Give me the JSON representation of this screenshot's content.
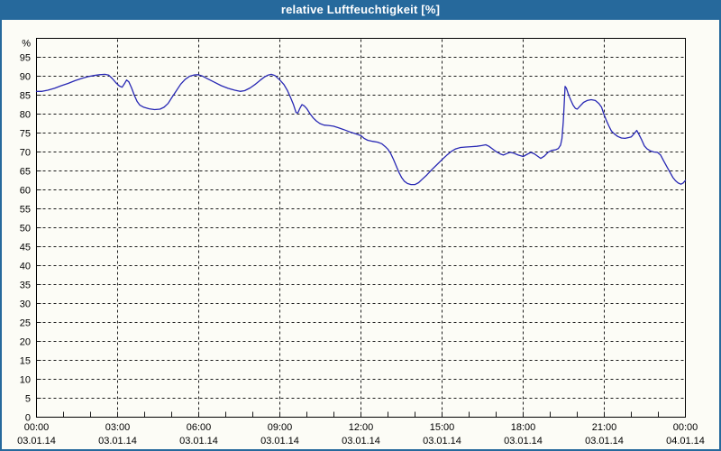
{
  "window": {
    "title": "relative Luftfeuchtigkeit [%]"
  },
  "colors": {
    "titlebar": "#26699C",
    "frame_border": "#26699C",
    "background": "#FCFCF6",
    "grid": "#1a1a1a",
    "axis": "#000000",
    "line": "#2828B4",
    "text": "#000000"
  },
  "chart_data": {
    "type": "line",
    "title": "relative Luftfeuchtigkeit [%]",
    "y_unit_label": "%",
    "grid": true,
    "legend_position": "none",
    "y_range": [
      0,
      100
    ],
    "y_ticks": [
      0,
      5,
      10,
      15,
      20,
      25,
      30,
      35,
      40,
      45,
      50,
      55,
      60,
      65,
      70,
      75,
      80,
      85,
      90,
      95
    ],
    "x_range_minutes": [
      0,
      1440
    ],
    "x_major_tick_interval_minutes": 180,
    "x_minor_tick_interval_minutes": 60,
    "x_ticks": [
      {
        "time": "00:00",
        "date": "03.01.14"
      },
      {
        "time": "03:00",
        "date": "03.01.14"
      },
      {
        "time": "06:00",
        "date": "03.01.14"
      },
      {
        "time": "09:00",
        "date": "03.01.14"
      },
      {
        "time": "12:00",
        "date": "03.01.14"
      },
      {
        "time": "15:00",
        "date": "03.01.14"
      },
      {
        "time": "18:00",
        "date": "03.01.14"
      },
      {
        "time": "21:00",
        "date": "03.01.14"
      },
      {
        "time": "00:00",
        "date": "04.01.14"
      }
    ],
    "series": [
      {
        "name": "relative Luftfeuchtigkeit",
        "unit": "%",
        "color": "#2828B4",
        "points": [
          [
            0,
            86.0
          ],
          [
            12,
            86.0
          ],
          [
            25,
            86.3
          ],
          [
            40,
            86.8
          ],
          [
            55,
            87.5
          ],
          [
            70,
            88.1
          ],
          [
            85,
            88.8
          ],
          [
            100,
            89.4
          ],
          [
            115,
            89.9
          ],
          [
            128,
            90.2
          ],
          [
            140,
            90.4
          ],
          [
            152,
            90.5
          ],
          [
            160,
            90.3
          ],
          [
            168,
            89.4
          ],
          [
            176,
            88.3
          ],
          [
            184,
            87.4
          ],
          [
            190,
            87.1
          ],
          [
            196,
            88.2
          ],
          [
            200,
            89.0
          ],
          [
            205,
            88.5
          ],
          [
            211,
            86.9
          ],
          [
            217,
            85.0
          ],
          [
            223,
            83.4
          ],
          [
            229,
            82.4
          ],
          [
            238,
            81.8
          ],
          [
            250,
            81.4
          ],
          [
            262,
            81.2
          ],
          [
            274,
            81.3
          ],
          [
            283,
            81.8
          ],
          [
            292,
            82.8
          ],
          [
            300,
            84.3
          ],
          [
            310,
            86.1
          ],
          [
            320,
            87.9
          ],
          [
            330,
            89.2
          ],
          [
            340,
            90.0
          ],
          [
            349,
            90.3
          ],
          [
            358,
            90.4
          ],
          [
            367,
            90.1
          ],
          [
            380,
            89.3
          ],
          [
            395,
            88.4
          ],
          [
            410,
            87.5
          ],
          [
            425,
            86.8
          ],
          [
            440,
            86.3
          ],
          [
            452,
            86.0
          ],
          [
            462,
            86.2
          ],
          [
            474,
            86.9
          ],
          [
            486,
            87.9
          ],
          [
            497,
            89.0
          ],
          [
            506,
            89.8
          ],
          [
            514,
            90.3
          ],
          [
            521,
            90.5
          ],
          [
            529,
            90.2
          ],
          [
            540,
            89.0
          ],
          [
            549,
            87.8
          ],
          [
            557,
            86.2
          ],
          [
            564,
            84.3
          ],
          [
            570,
            82.6
          ],
          [
            576,
            80.4
          ],
          [
            580,
            80.3
          ],
          [
            584,
            81.4
          ],
          [
            589,
            82.5
          ],
          [
            594,
            82.2
          ],
          [
            600,
            81.4
          ],
          [
            607,
            80.1
          ],
          [
            614,
            79.0
          ],
          [
            621,
            78.2
          ],
          [
            629,
            77.5
          ],
          [
            638,
            77.1
          ],
          [
            648,
            77.0
          ],
          [
            659,
            76.8
          ],
          [
            670,
            76.4
          ],
          [
            682,
            75.9
          ],
          [
            695,
            75.3
          ],
          [
            708,
            74.8
          ],
          [
            720,
            74.3
          ],
          [
            727,
            73.6
          ],
          [
            735,
            73.1
          ],
          [
            746,
            72.8
          ],
          [
            757,
            72.6
          ],
          [
            766,
            72.2
          ],
          [
            774,
            71.4
          ],
          [
            780,
            70.7
          ],
          [
            786,
            69.6
          ],
          [
            792,
            68.1
          ],
          [
            798,
            66.4
          ],
          [
            804,
            64.7
          ],
          [
            810,
            63.3
          ],
          [
            816,
            62.3
          ],
          [
            823,
            61.7
          ],
          [
            831,
            61.4
          ],
          [
            840,
            61.4
          ],
          [
            848,
            61.9
          ],
          [
            856,
            62.8
          ],
          [
            866,
            63.9
          ],
          [
            877,
            65.3
          ],
          [
            889,
            66.7
          ],
          [
            900,
            68.0
          ],
          [
            910,
            69.1
          ],
          [
            920,
            70.1
          ],
          [
            930,
            70.8
          ],
          [
            941,
            71.2
          ],
          [
            953,
            71.3
          ],
          [
            965,
            71.4
          ],
          [
            977,
            71.5
          ],
          [
            988,
            71.7
          ],
          [
            997,
            71.9
          ],
          [
            1004,
            71.5
          ],
          [
            1012,
            70.8
          ],
          [
            1020,
            70.1
          ],
          [
            1029,
            69.5
          ],
          [
            1036,
            69.2
          ],
          [
            1044,
            69.6
          ],
          [
            1051,
            69.9
          ],
          [
            1059,
            69.7
          ],
          [
            1069,
            69.2
          ],
          [
            1080,
            68.8
          ],
          [
            1089,
            69.4
          ],
          [
            1097,
            69.9
          ],
          [
            1105,
            69.5
          ],
          [
            1113,
            68.8
          ],
          [
            1119,
            68.3
          ],
          [
            1127,
            68.9
          ],
          [
            1135,
            69.9
          ],
          [
            1143,
            70.4
          ],
          [
            1152,
            70.6
          ],
          [
            1158,
            70.9
          ],
          [
            1163,
            71.8
          ],
          [
            1166,
            73.5
          ],
          [
            1169,
            78.0
          ],
          [
            1171,
            82.5
          ],
          [
            1173,
            87.3
          ],
          [
            1176,
            86.8
          ],
          [
            1181,
            85.0
          ],
          [
            1186,
            83.6
          ],
          [
            1191,
            82.3
          ],
          [
            1196,
            81.5
          ],
          [
            1200,
            81.3
          ],
          [
            1206,
            82.1
          ],
          [
            1214,
            83.1
          ],
          [
            1222,
            83.6
          ],
          [
            1231,
            83.8
          ],
          [
            1240,
            83.6
          ],
          [
            1248,
            82.8
          ],
          [
            1254,
            81.8
          ],
          [
            1259,
            80.0
          ],
          [
            1264,
            78.5
          ],
          [
            1270,
            76.9
          ],
          [
            1276,
            75.5
          ],
          [
            1282,
            74.8
          ],
          [
            1290,
            74.1
          ],
          [
            1298,
            73.7
          ],
          [
            1306,
            73.6
          ],
          [
            1314,
            73.8
          ],
          [
            1320,
            74.0
          ],
          [
            1326,
            74.8
          ],
          [
            1332,
            75.7
          ],
          [
            1337,
            74.6
          ],
          [
            1343,
            73.2
          ],
          [
            1349,
            71.6
          ],
          [
            1355,
            70.8
          ],
          [
            1362,
            70.3
          ],
          [
            1370,
            70.0
          ],
          [
            1378,
            69.9
          ],
          [
            1385,
            69.2
          ],
          [
            1392,
            67.6
          ],
          [
            1399,
            66.1
          ],
          [
            1406,
            64.6
          ],
          [
            1412,
            63.3
          ],
          [
            1418,
            62.4
          ],
          [
            1424,
            61.8
          ],
          [
            1430,
            61.5
          ],
          [
            1435,
            61.8
          ],
          [
            1440,
            62.5
          ]
        ]
      }
    ]
  }
}
